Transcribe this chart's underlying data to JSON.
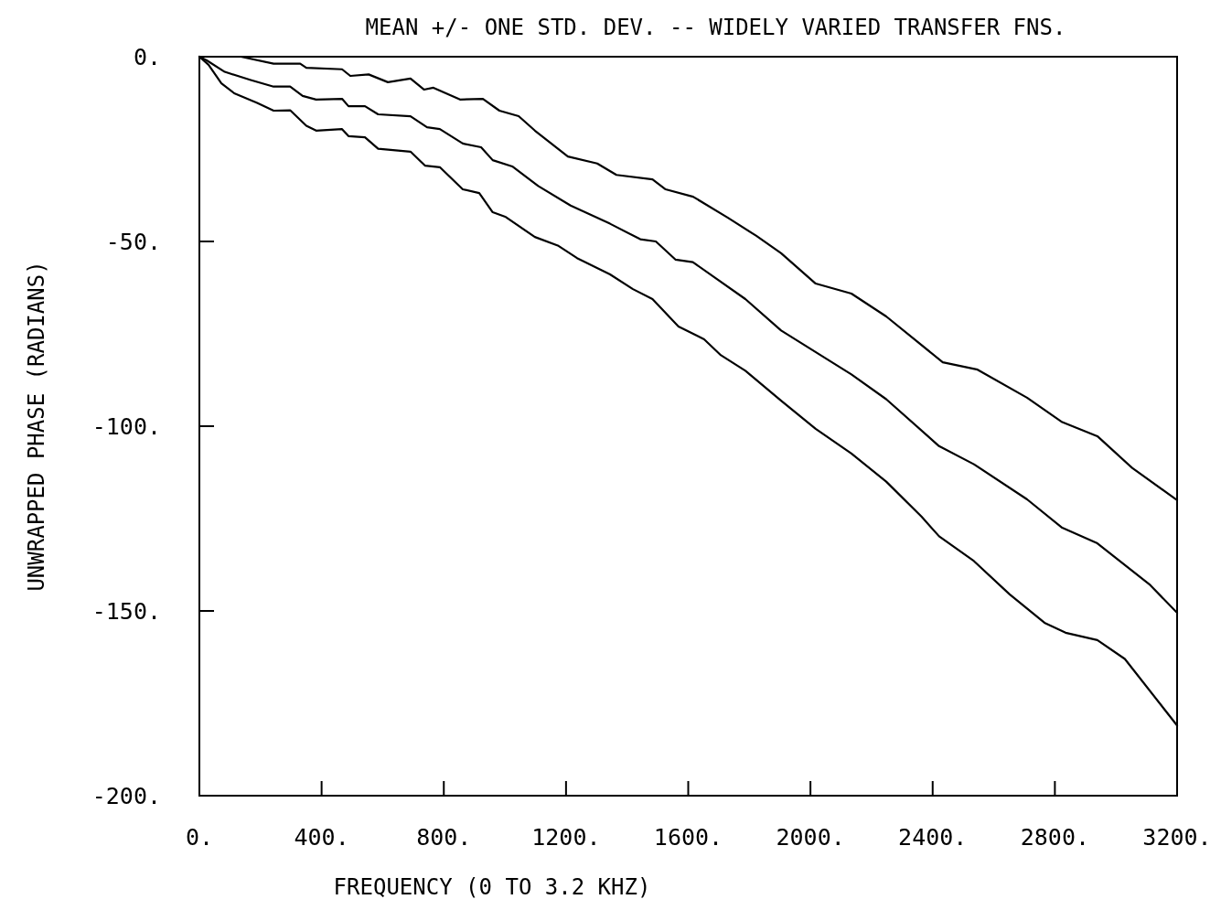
{
  "chart_data": {
    "type": "line",
    "title": "MEAN +/- ONE STD. DEV. -- WIDELY VARIED TRANSFER FNS.",
    "xlabel": "FREQUENCY (0 TO 3.2 KHZ)",
    "ylabel": "UNWRAPPED PHASE (RADIANS)",
    "xlim": [
      0,
      3200
    ],
    "ylim": [
      -200,
      0
    ],
    "xticks": [
      {
        "value": 0,
        "label": "0."
      },
      {
        "value": 400,
        "label": "400."
      },
      {
        "value": 800,
        "label": "800."
      },
      {
        "value": 1200,
        "label": "1200."
      },
      {
        "value": 1600,
        "label": "1600."
      },
      {
        "value": 2000,
        "label": "2000."
      },
      {
        "value": 2400,
        "label": "2400."
      },
      {
        "value": 2800,
        "label": "2800."
      },
      {
        "value": 3200,
        "label": "3200."
      }
    ],
    "yticks": [
      {
        "value": 0,
        "label": "0."
      },
      {
        "value": -50,
        "label": "-50."
      },
      {
        "value": -100,
        "label": "-100."
      },
      {
        "value": -150,
        "label": "-150."
      },
      {
        "value": -200,
        "label": "-200."
      }
    ],
    "grid": false,
    "marker": "none",
    "line_style": "solid",
    "series": [
      {
        "color": "#000000",
        "x": [
          0,
          136,
          243,
          330,
          350,
          467,
          494,
          554,
          617,
          691,
          735,
          766,
          853,
          928,
          982,
          1045,
          1098,
          1206,
          1302,
          1365,
          1483,
          1526,
          1616,
          1730,
          1823,
          1904,
          2017,
          2134,
          2248,
          2433,
          2547,
          2709,
          2824,
          2939,
          3053,
          3200
        ],
        "values": [
          0,
          0,
          -1.9,
          -1.9,
          -3,
          -3.4,
          -5.2,
          -4.8,
          -6.9,
          -5.9,
          -8.9,
          -8.4,
          -11.6,
          -11.4,
          -14.6,
          -16.1,
          -20,
          -27,
          -28.9,
          -32,
          -33.2,
          -35.9,
          -37.9,
          -43.6,
          -48.5,
          -53.2,
          -61.4,
          -64.1,
          -70.3,
          -82.7,
          -84.7,
          -92.3,
          -98.9,
          -102.7,
          -111.3,
          -120
        ]
      },
      {
        "color": "#000000",
        "x": [
          0,
          24,
          83,
          168,
          243,
          297,
          338,
          382,
          467,
          488,
          542,
          585,
          691,
          745,
          787,
          862,
          922,
          960,
          1024,
          1109,
          1215,
          1344,
          1443,
          1494,
          1558,
          1615,
          1787,
          1904,
          2134,
          2248,
          2421,
          2535,
          2709,
          2824,
          2939,
          3112,
          3200
        ],
        "values": [
          0,
          -1,
          -4.1,
          -6.3,
          -8.1,
          -8.1,
          -10.6,
          -11.6,
          -11.4,
          -13.4,
          -13.4,
          -15.6,
          -16.1,
          -19.1,
          -19.6,
          -23.5,
          -24.5,
          -28,
          -29.7,
          -35,
          -40.3,
          -45.2,
          -49.4,
          -50,
          -54.9,
          -55.6,
          -65.6,
          -74.1,
          -86,
          -92.7,
          -105.4,
          -110.3,
          -119.8,
          -127.5,
          -131.7,
          -143,
          -150.5
        ]
      },
      {
        "color": "#000000",
        "x": [
          0,
          30,
          72,
          114,
          189,
          243,
          297,
          350,
          382,
          467,
          488,
          542,
          585,
          691,
          739,
          787,
          862,
          916,
          960,
          1003,
          1098,
          1173,
          1236,
          1344,
          1419,
          1483,
          1568,
          1652,
          1707,
          1787,
          1904,
          2017,
          2134,
          2248,
          2364,
          2421,
          2535,
          2652,
          2766,
          2835,
          2939,
          3029,
          3200
        ],
        "values": [
          0,
          -2.2,
          -7.2,
          -9.9,
          -12.5,
          -14.6,
          -14.5,
          -18.7,
          -20,
          -19.6,
          -21.5,
          -21.8,
          -24.9,
          -25.7,
          -29.5,
          -29.9,
          -35.9,
          -36.9,
          -42.1,
          -43.4,
          -48.8,
          -51.1,
          -54.5,
          -58.9,
          -62.9,
          -65.6,
          -73,
          -76.5,
          -80.8,
          -85,
          -93.1,
          -100.7,
          -107.4,
          -115,
          -124.5,
          -129.8,
          -136.5,
          -145.5,
          -153.2,
          -155.9,
          -157.9,
          -163,
          -181
        ]
      }
    ]
  }
}
